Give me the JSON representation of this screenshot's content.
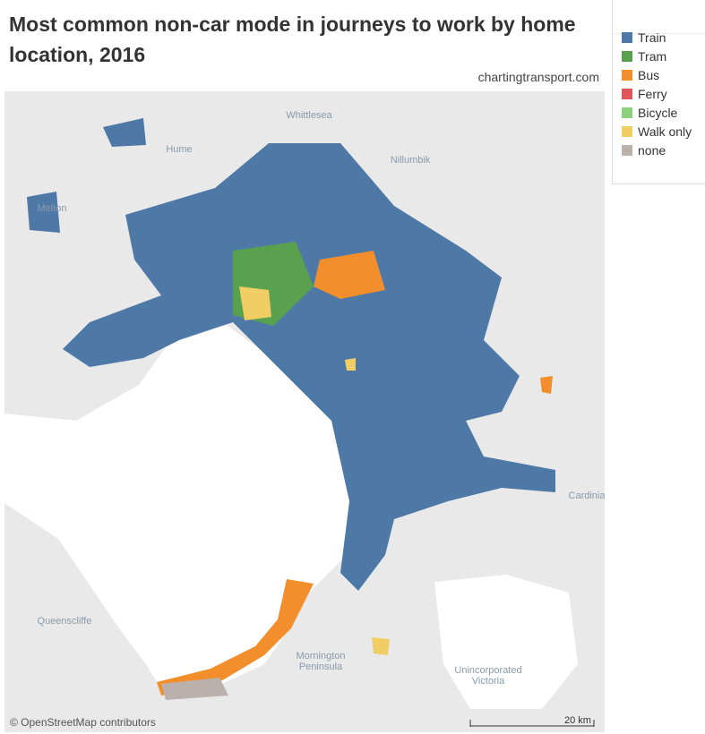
{
  "header": {
    "title": "Most common non-car mode in journeys to work by home location, 2016",
    "source": "chartingtransport.com"
  },
  "legend": {
    "items": [
      {
        "label": "Train",
        "color": "#4e79a7"
      },
      {
        "label": "Tram",
        "color": "#59a14f"
      },
      {
        "label": "Bus",
        "color": "#f28e2b"
      },
      {
        "label": "Ferry",
        "color": "#e15759"
      },
      {
        "label": "Bicycle",
        "color": "#8cd17d"
      },
      {
        "label": "Walk only",
        "color": "#f1ce63"
      },
      {
        "label": "none",
        "color": "#bab0ac"
      }
    ]
  },
  "map": {
    "place_labels": [
      {
        "lines": [
          "Whittlesea"
        ]
      },
      {
        "lines": [
          "Hume"
        ]
      },
      {
        "lines": [
          "Nillumbik"
        ]
      },
      {
        "lines": [
          "Melton"
        ]
      },
      {
        "lines": [
          "Cardinia"
        ]
      },
      {
        "lines": [
          "Queenscliffe"
        ]
      },
      {
        "lines": [
          "Mornington",
          "Peninsula"
        ]
      },
      {
        "lines": [
          "Unincorporated",
          "Victoria"
        ]
      }
    ],
    "attribution": "© OpenStreetMap contributors",
    "scale": "20 km"
  }
}
